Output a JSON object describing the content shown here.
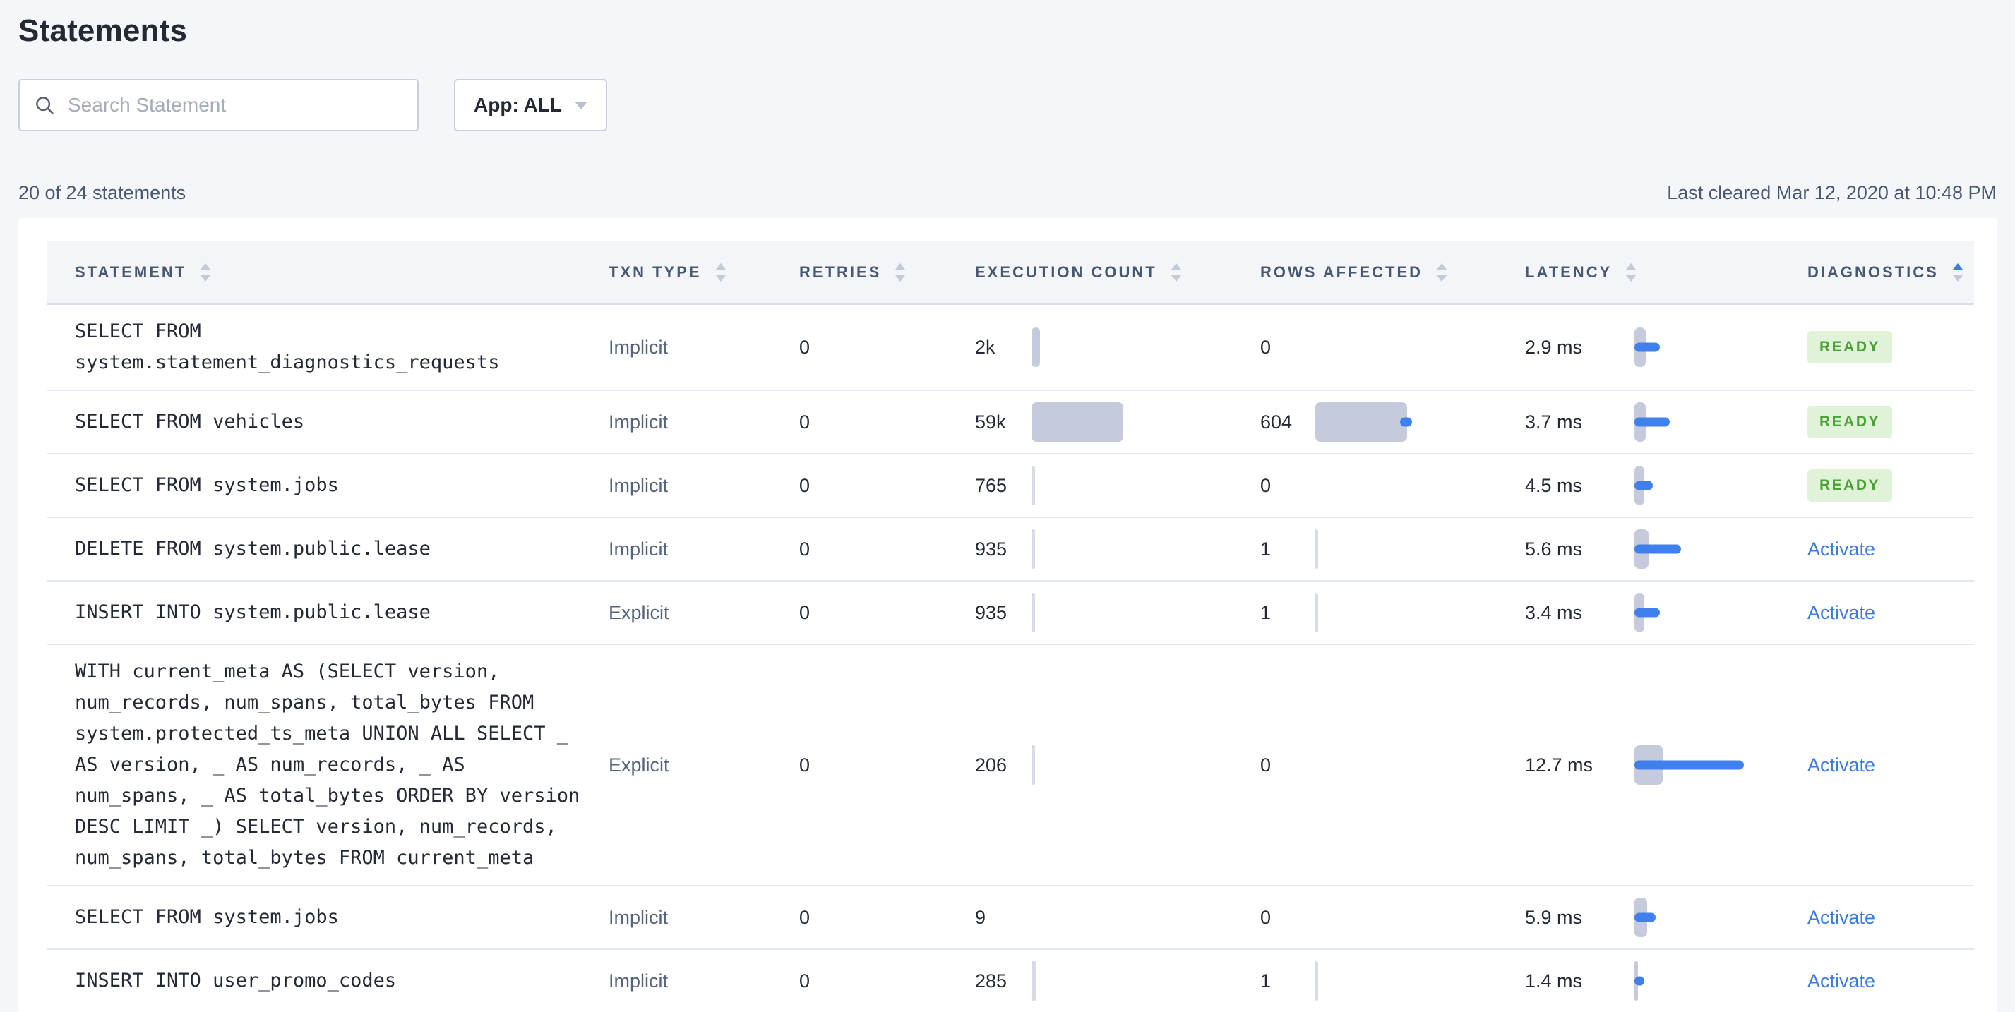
{
  "page": {
    "title": "Statements",
    "search_placeholder": "Search Statement",
    "app_filter_label": "App: ALL",
    "count_summary": "20 of 24 statements",
    "last_cleared": "Last cleared Mar 12, 2020 at 10:48 PM"
  },
  "colors": {
    "accent_blue": "#3B7DDD",
    "bar_blue": "#3F80EC",
    "bar_gray": "#C5CBDD",
    "badge_bg": "#E0F3D8",
    "badge_text": "#49A234",
    "header_text": "#475872",
    "page_bg": "#F5F6FA"
  },
  "table": {
    "columns": [
      {
        "label": "STATEMENT",
        "slug": "statement",
        "sort": "none"
      },
      {
        "label": "TXN TYPE",
        "slug": "txn-type",
        "sort": "none"
      },
      {
        "label": "RETRIES",
        "slug": "retries",
        "sort": "none"
      },
      {
        "label": "EXECUTION COUNT",
        "slug": "execution-count",
        "sort": "none"
      },
      {
        "label": "ROWS AFFECTED",
        "slug": "rows-affected",
        "sort": "none"
      },
      {
        "label": "LATENCY",
        "slug": "latency",
        "sort": "none"
      },
      {
        "label": "DIAGNOSTICS",
        "slug": "diagnostics",
        "sort": "asc"
      }
    ],
    "rows": [
      {
        "statement": "SELECT FROM\nsystem.statement_diagnostics_requests",
        "txn_type": "Implicit",
        "retries": "0",
        "execution_count": "2k",
        "exec_bar": {
          "shape": "pill",
          "w": 12
        },
        "rows_affected": "0",
        "rows_bar": null,
        "latency": "2.9 ms",
        "latency_bar": {
          "gray_w": 16,
          "blue_w": 36
        },
        "diagnostics": {
          "type": "badge",
          "label": "READY"
        }
      },
      {
        "statement": "SELECT FROM vehicles",
        "txn_type": "Implicit",
        "retries": "0",
        "execution_count": "59k",
        "exec_bar": {
          "shape": "pill",
          "w": 130
        },
        "rows_affected": "604",
        "rows_bar": {
          "shape": "pill",
          "w": 130,
          "dot": true
        },
        "latency": "3.7 ms",
        "latency_bar": {
          "gray_w": 16,
          "blue_w": 50
        },
        "diagnostics": {
          "type": "badge",
          "label": "READY"
        }
      },
      {
        "statement": "SELECT FROM system.jobs",
        "txn_type": "Implicit",
        "retries": "0",
        "execution_count": "765",
        "exec_bar": {
          "shape": "line",
          "w": 5
        },
        "rows_affected": "0",
        "rows_bar": null,
        "latency": "4.5 ms",
        "latency_bar": {
          "gray_w": 14,
          "blue_w": 26
        },
        "diagnostics": {
          "type": "badge",
          "label": "READY"
        }
      },
      {
        "statement": "DELETE FROM system.public.lease",
        "txn_type": "Implicit",
        "retries": "0",
        "execution_count": "935",
        "exec_bar": {
          "shape": "line",
          "w": 5
        },
        "rows_affected": "1",
        "rows_bar": {
          "shape": "line",
          "w": 4
        },
        "latency": "5.6 ms",
        "latency_bar": {
          "gray_w": 20,
          "blue_w": 66
        },
        "diagnostics": {
          "type": "link",
          "label": "Activate"
        }
      },
      {
        "statement": "INSERT INTO system.public.lease",
        "txn_type": "Explicit",
        "retries": "0",
        "execution_count": "935",
        "exec_bar": {
          "shape": "line",
          "w": 5
        },
        "rows_affected": "1",
        "rows_bar": {
          "shape": "line",
          "w": 4
        },
        "latency": "3.4 ms",
        "latency_bar": {
          "gray_w": 14,
          "blue_w": 36
        },
        "diagnostics": {
          "type": "link",
          "label": "Activate"
        }
      },
      {
        "statement": "WITH current_meta AS (SELECT version,\nnum_records, num_spans, total_bytes FROM\nsystem.protected_ts_meta UNION ALL SELECT _\nAS version, _ AS num_records, _ AS\nnum_spans, _ AS total_bytes ORDER BY version\nDESC LIMIT _) SELECT version, num_records,\nnum_spans, total_bytes FROM current_meta",
        "txn_type": "Explicit",
        "retries": "0",
        "execution_count": "206",
        "exec_bar": {
          "shape": "line",
          "w": 5
        },
        "rows_affected": "0",
        "rows_bar": null,
        "latency": "12.7 ms",
        "latency_bar": {
          "gray_w": 40,
          "blue_w": 155
        },
        "diagnostics": {
          "type": "link",
          "label": "Activate"
        }
      },
      {
        "statement": "SELECT FROM system.jobs",
        "txn_type": "Implicit",
        "retries": "0",
        "execution_count": "9",
        "exec_bar": null,
        "rows_affected": "0",
        "rows_bar": null,
        "latency": "5.9 ms",
        "latency_bar": {
          "gray_w": 18,
          "blue_w": 30
        },
        "diagnostics": {
          "type": "link",
          "label": "Activate"
        }
      },
      {
        "statement": "INSERT INTO user_promo_codes",
        "txn_type": "Implicit",
        "retries": "0",
        "execution_count": "285",
        "exec_bar": {
          "shape": "line",
          "w": 6
        },
        "rows_affected": "1",
        "rows_bar": {
          "shape": "line",
          "w": 4
        },
        "latency": "1.4 ms",
        "latency_bar": {
          "gray_w": 5,
          "blue_w": 14
        },
        "diagnostics": {
          "type": "link",
          "label": "Activate"
        }
      }
    ]
  }
}
